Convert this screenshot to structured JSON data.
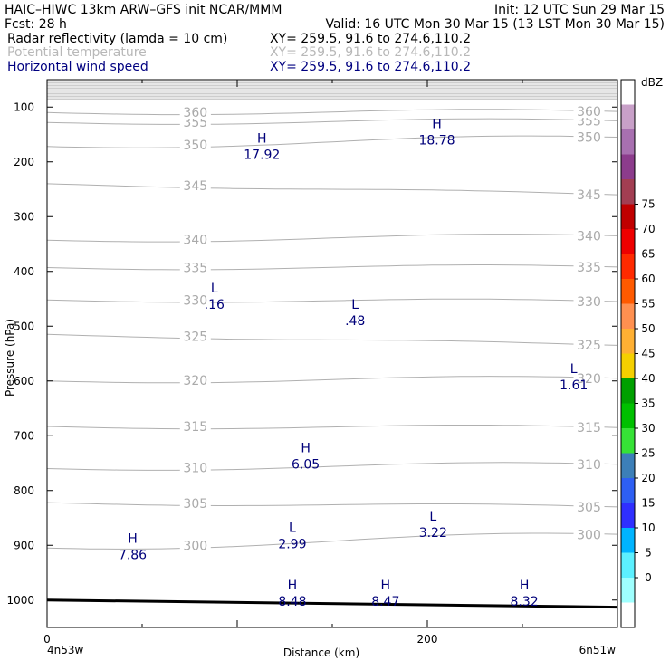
{
  "header": {
    "line1_left": "HAIC–HIWC 13km ARW–GFS init   NCAR/MMM",
    "line1_right": "Init: 12 UTC Sun 29 Mar 15",
    "line2_left": "Fcst:    28 h",
    "line2_right": "Valid: 16 UTC Mon 30 Mar 15 (13 LST Mon 30 Mar 15)",
    "field1": "Radar reflectivity (lamda = 10 cm)",
    "field2": "Potential temperature",
    "field3": "Horizontal wind speed",
    "xy": "XY= 259.5, 91.6 to 274.6,110.2"
  },
  "chart_data": {
    "type": "line",
    "xlabel": "Distance (km)",
    "ylabel": "Pressure (hPa)",
    "xlim": [
      0,
      300
    ],
    "ylim": [
      1050,
      50
    ],
    "x_ticks": [
      0,
      200
    ],
    "y_ticks": [
      100,
      200,
      300,
      400,
      500,
      600,
      700,
      800,
      900,
      1000
    ],
    "x_end_labels": [
      "4n53w",
      "6n51w"
    ],
    "colorbar": {
      "title": "dBZ",
      "levels": [
        0,
        5,
        10,
        15,
        20,
        25,
        30,
        35,
        40,
        45,
        50,
        55,
        60,
        65,
        70,
        75
      ],
      "colors": [
        "#ffffff",
        "#9ffffe",
        "#5cf0ff",
        "#00b4ff",
        "#2f2fff",
        "#2e5ff3",
        "#3c7fb8",
        "#36e236",
        "#00c000",
        "#00a000",
        "#f5d000",
        "#ffb033",
        "#ff9050",
        "#ff5a00",
        "#ff2a00",
        "#ee0000",
        "#c00000",
        "#a23e52",
        "#8c3c8c",
        "#a870b0",
        "#c8a0c8",
        "#ffffff"
      ]
    },
    "isentropes": [
      {
        "label": "300",
        "p_left": 905,
        "p_right": 880
      },
      {
        "label": "305",
        "p_left": 822,
        "p_right": 830
      },
      {
        "label": "310",
        "p_left": 760,
        "p_right": 752
      },
      {
        "label": "315",
        "p_left": 683,
        "p_right": 685
      },
      {
        "label": "320",
        "p_left": 600,
        "p_right": 595
      },
      {
        "label": "325",
        "p_left": 515,
        "p_right": 535
      },
      {
        "label": "330",
        "p_left": 452,
        "p_right": 455
      },
      {
        "label": "335",
        "p_left": 393,
        "p_right": 392
      },
      {
        "label": "340",
        "p_left": 343,
        "p_right": 335
      },
      {
        "label": "345",
        "p_left": 240,
        "p_right": 260
      },
      {
        "label": "350",
        "p_left": 172,
        "p_right": 155
      },
      {
        "label": "355",
        "p_left": 128,
        "p_right": 125
      },
      {
        "label": "360",
        "p_left": 110,
        "p_right": 108
      }
    ],
    "wind_extrema": [
      {
        "type": "H",
        "value": "18.78",
        "x": 205,
        "p": 168
      },
      {
        "type": "H",
        "value": "17.92",
        "x": 113,
        "p": 195
      },
      {
        "type": "L",
        "value": ".16",
        "x": 88,
        "p": 468
      },
      {
        "type": "L",
        "value": ".48",
        "x": 162,
        "p": 498
      },
      {
        "type": "L",
        "value": "1.61",
        "x": 277,
        "p": 615
      },
      {
        "type": "H",
        "value": "6.05",
        "x": 136,
        "p": 760
      },
      {
        "type": "H",
        "value": "7.86",
        "x": 45,
        "p": 925
      },
      {
        "type": "L",
        "value": "2.99",
        "x": 129,
        "p": 905
      },
      {
        "type": "L",
        "value": "3.22",
        "x": 203,
        "p": 885
      },
      {
        "type": "H",
        "value": "8.48",
        "x": 129,
        "p": 1010
      },
      {
        "type": "H",
        "value": "8.47",
        "x": 178,
        "p": 1010
      },
      {
        "type": "H",
        "value": "8.32",
        "x": 251,
        "p": 1010
      }
    ],
    "terrain_p": [
      1000,
      1013
    ]
  }
}
